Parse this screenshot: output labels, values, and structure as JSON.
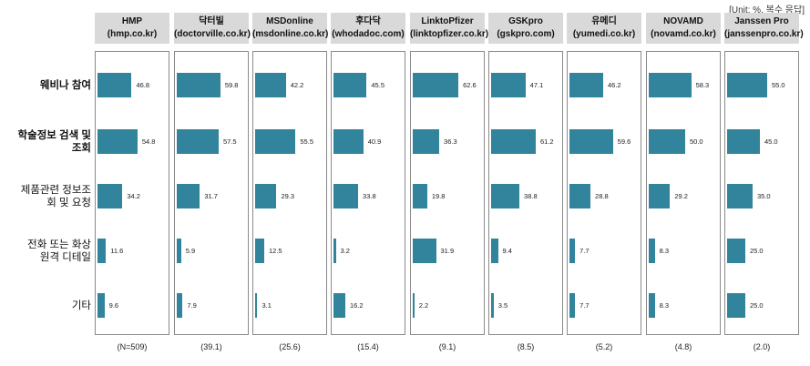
{
  "unit_note": "[Unit: %, 복수 응답]",
  "chart_data": {
    "type": "bar",
    "categories": [
      "웨비나 참여",
      "학술정보 검색 및\n조회",
      "제품관련 정보조\n회 및 요청",
      "전화 또는 화상\n원격 디테일",
      "기타"
    ],
    "series": [
      {
        "name": "HMP\n(hmp.co.kr)",
        "n": "(N=509)",
        "labels": [
          "46.8",
          "54.8",
          "34.2",
          "11.6",
          "9.6"
        ],
        "values": [
          46.8,
          54.8,
          34.2,
          11.6,
          9.6
        ]
      },
      {
        "name": "닥터빌\n(doctorville.co.kr)",
        "n": "(39.1)",
        "labels": [
          "59.8",
          "57.5",
          "31.7",
          "5.9",
          "7.9"
        ],
        "values": [
          59.8,
          57.5,
          31.7,
          5.9,
          7.9
        ]
      },
      {
        "name": "MSDonline\n(msdonline.co.kr)",
        "n": "(25.6)",
        "labels": [
          "42.2",
          "55.5",
          "29.3",
          "12.5",
          "3.1"
        ],
        "values": [
          42.2,
          55.5,
          29.3,
          12.5,
          3.1
        ]
      },
      {
        "name": "후다닥\n(whodadoc.com)",
        "n": "(15.4)",
        "labels": [
          "45.5",
          "40.9",
          "33.8",
          "3.2",
          "16.2"
        ],
        "values": [
          45.5,
          40.9,
          33.8,
          3.2,
          16.2
        ]
      },
      {
        "name": "LinktoPfizer\n(linktopfizer.co.kr)",
        "n": "(9.1)",
        "labels": [
          "62.6",
          "36.3",
          "19.8",
          "31.9",
          "2.2"
        ],
        "values": [
          62.6,
          36.3,
          19.8,
          31.9,
          2.2
        ]
      },
      {
        "name": "GSKpro\n(gskpro.com)",
        "n": "(8.5)",
        "labels": [
          "47.1",
          "61.2",
          "38.8",
          "9.4",
          "3.5"
        ],
        "values": [
          47.1,
          61.2,
          38.8,
          9.4,
          3.5
        ]
      },
      {
        "name": "유메디\n(yumedi.co.kr)",
        "n": "(5.2)",
        "labels": [
          "46.2",
          "59.6",
          "28.8",
          "7.7",
          "7.7"
        ],
        "values": [
          46.2,
          59.6,
          28.8,
          7.7,
          7.7
        ]
      },
      {
        "name": "NOVAMD\n(novamd.co.kr)",
        "n": "(4.8)",
        "labels": [
          "58.3",
          "50.0",
          "29.2",
          "8.3",
          "8.3"
        ],
        "values": [
          58.3,
          50.0,
          29.2,
          8.3,
          8.3
        ]
      },
      {
        "name": "Janssen Pro\n(janssenpro.co.kr)",
        "n": "(2.0)",
        "labels": [
          "55.0",
          "45.0",
          "35.0",
          "25.0",
          "25.0"
        ],
        "values": [
          55.0,
          45.0,
          35.0,
          25.0,
          25.0
        ]
      }
    ],
    "xlim": [
      0,
      100
    ],
    "grid": false
  }
}
